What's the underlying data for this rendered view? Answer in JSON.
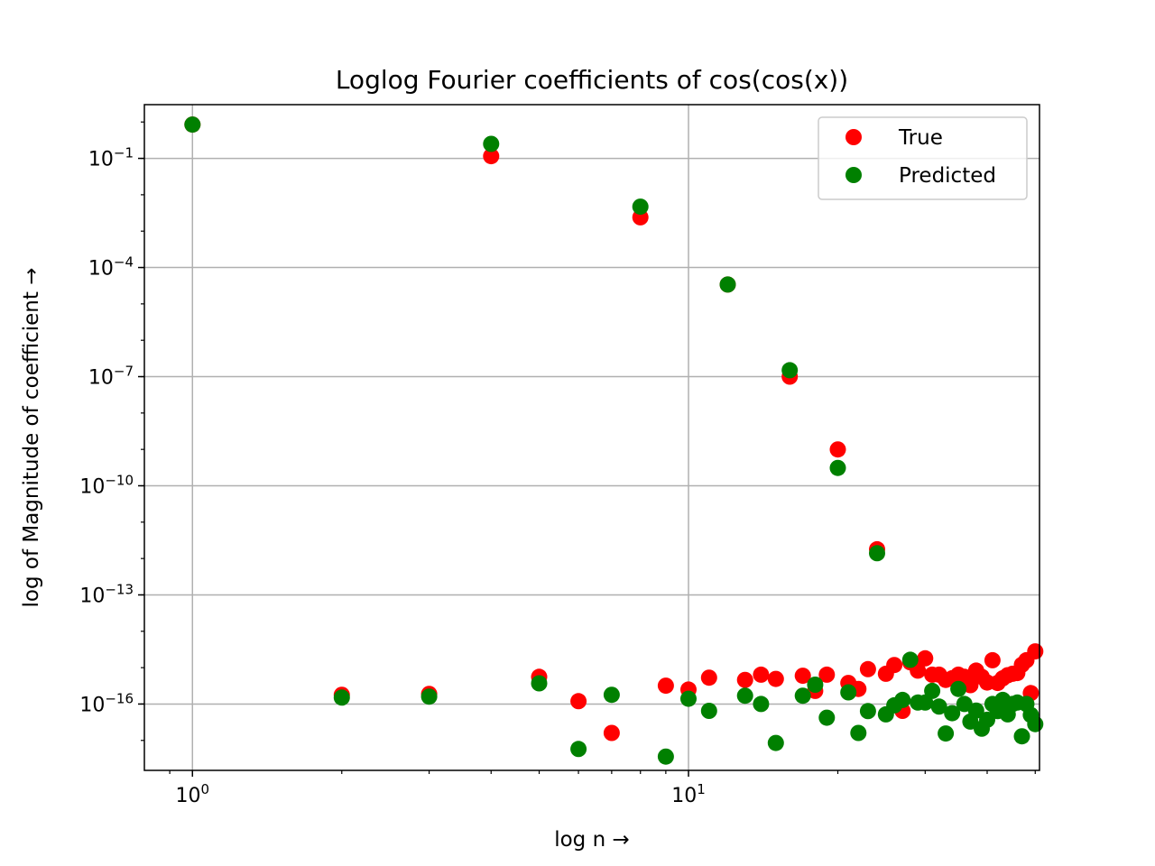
{
  "chart_data": {
    "type": "scatter",
    "title": "Loglog Fourier coefficients of cos(cos(x))",
    "xlabel": "log n →",
    "ylabel": "log of Magnitude of coefficient →",
    "xscale": "log",
    "yscale": "log",
    "xlim": [
      0.8,
      51
    ],
    "ylim": [
      1.5e-18,
      3.0
    ],
    "grid": true,
    "legend_position": "top-right",
    "x_ticks": [
      {
        "value": 1,
        "base": "10",
        "exp": "0"
      },
      {
        "value": 10,
        "base": "10",
        "exp": "1"
      }
    ],
    "y_ticks": [
      {
        "value": 0.1,
        "base": "10",
        "exp": "−1"
      },
      {
        "value": 0.0001,
        "base": "10",
        "exp": "−4"
      },
      {
        "value": 1e-07,
        "base": "10",
        "exp": "−7"
      },
      {
        "value": 1e-10,
        "base": "10",
        "exp": "−10"
      },
      {
        "value": 1e-13,
        "base": "10",
        "exp": "−13"
      },
      {
        "value": 1e-16,
        "base": "10",
        "exp": "−16"
      }
    ],
    "series": [
      {
        "name": "True",
        "color": "#ff0000",
        "x": [
          1,
          2,
          3,
          4,
          5,
          6,
          7,
          8,
          9,
          10,
          11,
          12,
          13,
          14,
          15,
          16,
          17,
          18,
          19,
          20,
          21,
          22,
          23,
          24,
          25,
          26,
          27,
          28,
          29,
          30,
          31,
          32,
          33,
          34,
          35,
          36,
          37,
          38,
          39,
          40,
          41,
          42,
          43,
          44,
          45,
          46,
          47,
          48,
          49,
          50
        ],
        "y": [
          0.85,
          1.8e-16,
          1.9e-16,
          0.115,
          5.6e-16,
          1.2e-16,
          1.6e-17,
          0.0024,
          3.2e-16,
          2.5e-16,
          5.3e-16,
          3.4e-05,
          4.6e-16,
          6.4e-16,
          4.9e-16,
          1e-07,
          6e-16,
          2.3e-16,
          6.4e-16,
          1e-09,
          3.8e-16,
          2.6e-16,
          9.1e-16,
          1.8e-12,
          6.8e-16,
          1.18e-15,
          6.5e-17,
          1.4e-15,
          8.3e-16,
          1.8e-15,
          6.4e-16,
          6.4e-16,
          4.6e-16,
          5.1e-16,
          6.4e-16,
          5.6e-16,
          3.3e-16,
          8.3e-16,
          5.6e-16,
          3.9e-16,
          1.6e-15,
          3.8e-16,
          5.1e-16,
          6.2e-16,
          6.8e-16,
          7.1e-16,
          1.2e-15,
          1.6e-15,
          2e-16,
          2.8e-15
        ]
      },
      {
        "name": "Predicted",
        "color": "#008000",
        "x": [
          1,
          2,
          3,
          4,
          5,
          6,
          7,
          8,
          9,
          10,
          11,
          12,
          13,
          14,
          15,
          16,
          17,
          18,
          19,
          20,
          21,
          22,
          23,
          24,
          25,
          26,
          27,
          28,
          29,
          30,
          31,
          32,
          33,
          34,
          35,
          36,
          37,
          38,
          39,
          40,
          41,
          42,
          43,
          44,
          45,
          46,
          47,
          48,
          49,
          50
        ],
        "y": [
          0.85,
          1.5e-16,
          1.6e-16,
          0.25,
          3.7e-16,
          5.8e-18,
          1.8e-16,
          0.0047,
          3.6e-18,
          1.4e-16,
          6.5e-17,
          3.4e-05,
          1.7e-16,
          1e-16,
          8.5e-18,
          1.5e-07,
          1.7e-16,
          3.4e-16,
          4.2e-17,
          3.1e-10,
          2.1e-16,
          1.6e-17,
          6.4e-17,
          1.4e-12,
          5.2e-17,
          9.2e-17,
          1.3e-16,
          1.65e-15,
          1.1e-16,
          1.1e-16,
          2.3e-16,
          8.5e-17,
          1.55e-17,
          5.6e-17,
          2.6e-16,
          1e-16,
          3.3e-17,
          6.6e-17,
          2.1e-17,
          3.7e-17,
          1e-16,
          6.4e-17,
          1.3e-16,
          5.2e-17,
          1e-16,
          1.1e-16,
          1.3e-17,
          1e-16,
          5e-17,
          2.8e-17
        ]
      }
    ]
  }
}
